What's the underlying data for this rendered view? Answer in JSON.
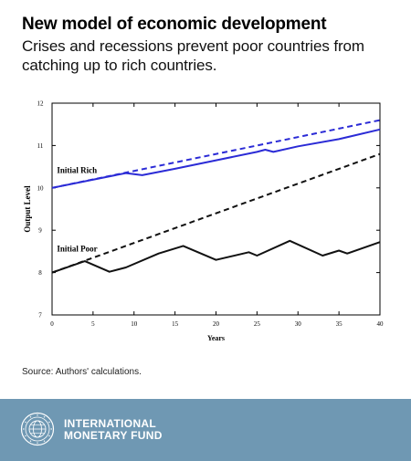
{
  "header": {
    "title": "New model of economic development",
    "subtitle": "Crises and recessions prevent poor countries from catching up to rich countries."
  },
  "source": "Source: Authors' calculations.",
  "footer": {
    "org_line1": "INTERNATIONAL",
    "org_line2": "MONETARY FUND",
    "background_color": "#6f98b3",
    "logo_icon": "imf-seal-icon"
  },
  "chart_data": {
    "type": "line",
    "title": "",
    "xlabel": "Years",
    "ylabel": "Output Level",
    "xlim": [
      0,
      40
    ],
    "ylim": [
      7,
      12
    ],
    "xticks": [
      0,
      5,
      10,
      15,
      20,
      25,
      30,
      35,
      40
    ],
    "yticks": [
      7,
      8,
      9,
      10,
      11,
      12
    ],
    "grid": false,
    "annotations": [
      {
        "text": "Initial Rich",
        "x": 0.6,
        "y": 10.35
      },
      {
        "text": "Initial Poor",
        "x": 0.6,
        "y": 8.5
      }
    ],
    "series": [
      {
        "name": "",
        "color": "#2b2bd6",
        "dash": true,
        "x": [
          0,
          40
        ],
        "y": [
          10.0,
          11.6
        ]
      },
      {
        "name": "",
        "color": "#2b2bd6",
        "dash": false,
        "x": [
          0,
          9,
          11,
          15,
          20,
          25,
          26,
          27,
          30,
          35,
          40
        ],
        "y": [
          10.0,
          10.35,
          10.3,
          10.45,
          10.65,
          10.85,
          10.9,
          10.85,
          10.98,
          11.15,
          11.38
        ]
      },
      {
        "name": "",
        "color": "#111111",
        "dash": true,
        "x": [
          0,
          40
        ],
        "y": [
          8.0,
          10.8
        ]
      },
      {
        "name": "",
        "color": "#111111",
        "dash": false,
        "x": [
          0,
          4,
          7,
          9,
          13,
          16,
          20,
          24,
          25,
          29,
          33,
          35,
          36,
          40
        ],
        "y": [
          8.0,
          8.27,
          8.02,
          8.12,
          8.45,
          8.63,
          8.3,
          8.48,
          8.4,
          8.75,
          8.4,
          8.52,
          8.45,
          8.72
        ]
      }
    ]
  }
}
